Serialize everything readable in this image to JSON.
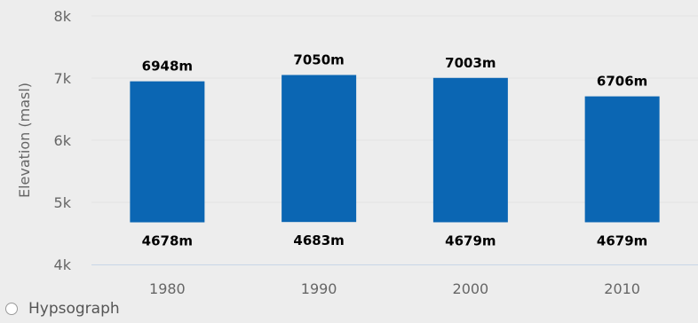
{
  "chart_data": {
    "type": "bar",
    "categories": [
      "1980",
      "1990",
      "2000",
      "2010"
    ],
    "series": [
      {
        "values": [
          [
            4678,
            6948
          ],
          [
            4683,
            7050
          ],
          [
            4679,
            7003
          ],
          [
            4679,
            6706
          ]
        ]
      }
    ],
    "high_labels": [
      "6948m",
      "7050m",
      "7003m",
      "6706m"
    ],
    "low_labels": [
      "4678m",
      "4683m",
      "4679m",
      "4679m"
    ],
    "ylabel": "Elevation (masl)",
    "xlabel": "",
    "ylim": [
      4000,
      8000
    ],
    "yticks": [
      "4k",
      "5k",
      "6k",
      "7k",
      "8k"
    ],
    "grid": true,
    "bar_color": "#0b66b3"
  },
  "legend": {
    "label": "Hypsograph"
  }
}
